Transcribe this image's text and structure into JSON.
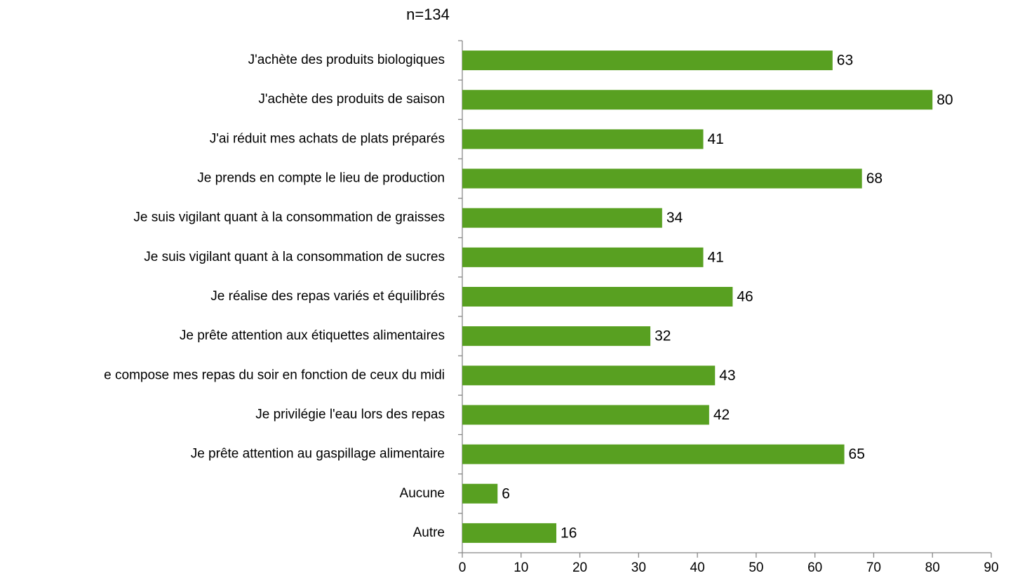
{
  "chart_data": {
    "type": "bar",
    "orientation": "horizontal",
    "title": "n=134",
    "categories": [
      "J'achète des produits biologiques",
      "J'achète des produits de saison",
      "J'ai réduit mes achats de plats préparés",
      "Je prends en compte le lieu de production",
      "Je suis vigilant quant à la consommation de graisses",
      "Je suis vigilant quant à la consommation de sucres",
      "Je réalise des repas variés et équilibrés",
      "Je prête attention aux étiquettes alimentaires",
      "e compose mes repas du soir en fonction de ceux du midi",
      "Je privilégie l'eau lors des repas",
      "Je prête attention au gaspillage alimentaire",
      "Aucune",
      "Autre"
    ],
    "values": [
      63,
      80,
      41,
      68,
      34,
      41,
      46,
      32,
      43,
      42,
      65,
      6,
      16
    ],
    "color": "#58a021",
    "xlim": [
      0,
      90
    ],
    "xticks": [
      0,
      10,
      20,
      30,
      40,
      50,
      60,
      70,
      80,
      90
    ],
    "grid": false
  }
}
